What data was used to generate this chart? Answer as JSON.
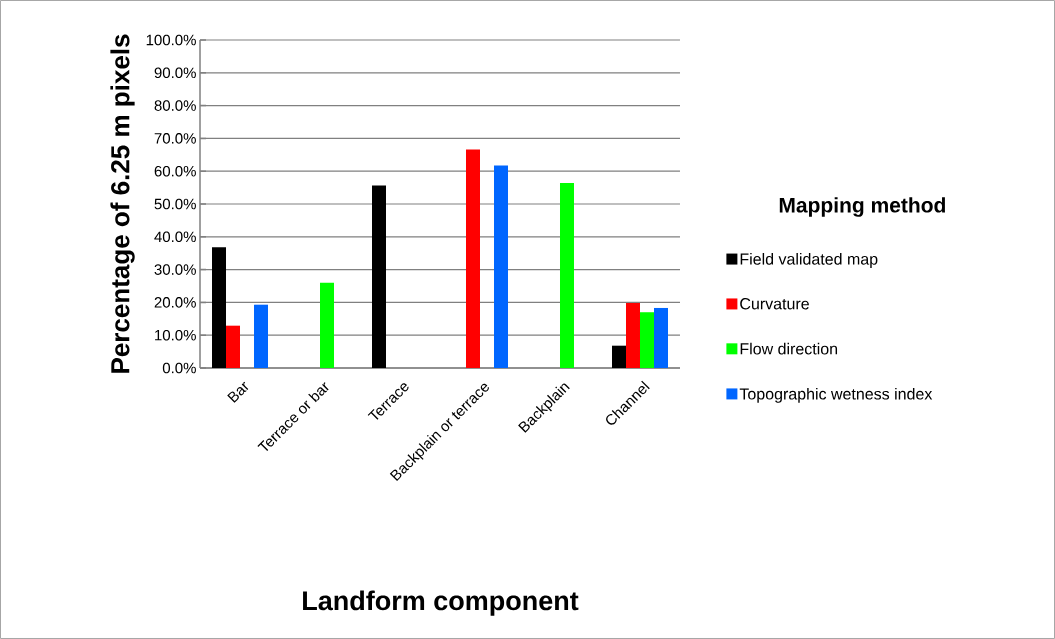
{
  "chart_data": {
    "type": "bar",
    "xlabel": "Landform component",
    "ylabel": "Percentage of 6.25 m pixels",
    "legend_title": "Mapping method",
    "categories": [
      "Bar",
      "Terrace or bar",
      "Terrace",
      "Backplain or terrace",
      "Backplain",
      "Channel"
    ],
    "series": [
      {
        "name": "Field validated map",
        "color": "#000000",
        "values": [
          36.8,
          null,
          55.6,
          null,
          null,
          6.8
        ]
      },
      {
        "name": "Curvature",
        "color": "#ff0000",
        "values": [
          12.9,
          null,
          null,
          66.6,
          null,
          19.8
        ]
      },
      {
        "name": "Flow direction",
        "color": "#00ff00",
        "values": [
          null,
          26.0,
          null,
          null,
          56.4,
          17.0
        ]
      },
      {
        "name": "Topographic wetness index",
        "color": "#0066ff",
        "values": [
          19.3,
          null,
          null,
          61.7,
          null,
          18.3
        ]
      }
    ],
    "ylim": [
      0,
      100
    ],
    "yticks": [
      {
        "value": 0,
        "label": "0.0%"
      },
      {
        "value": 10,
        "label": "10.0%"
      },
      {
        "value": 20,
        "label": "20.0%"
      },
      {
        "value": 30,
        "label": "30.0%"
      },
      {
        "value": 40,
        "label": "40.0%"
      },
      {
        "value": 50,
        "label": "50.0%"
      },
      {
        "value": 60,
        "label": "60.0%"
      },
      {
        "value": 70,
        "label": "70.0%"
      },
      {
        "value": 80,
        "label": "80.0%"
      },
      {
        "value": 90,
        "label": "90.0%"
      },
      {
        "value": 100,
        "label": "100.0%"
      }
    ],
    "grid": "y",
    "legend": "right"
  }
}
